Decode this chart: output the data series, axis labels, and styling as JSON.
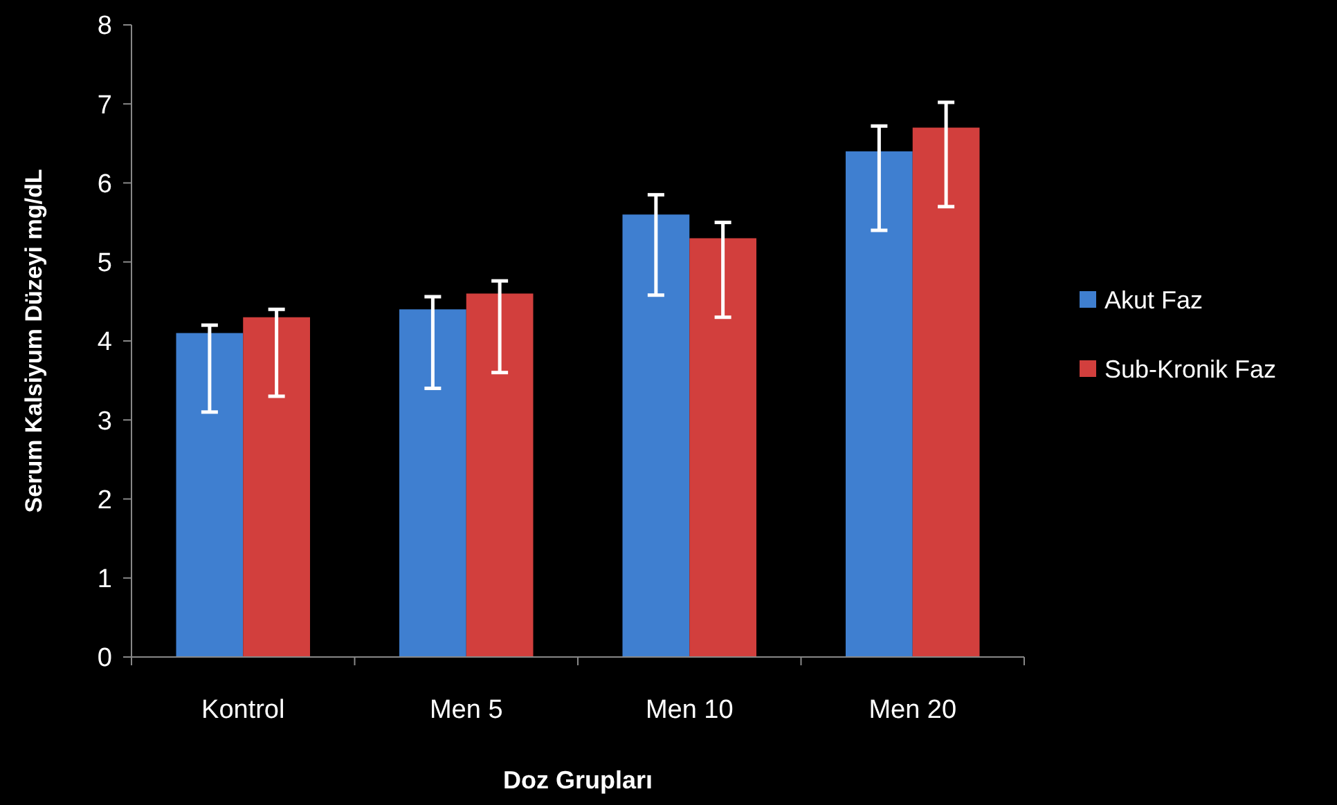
{
  "chart_data": {
    "type": "bar",
    "xlabel": "Doz Grupları",
    "ylabel": "Serum Kalsiyum Düzeyi mg/dL",
    "categories": [
      "Kontrol",
      "Men 5",
      "Men 10",
      "Men 20"
    ],
    "series": [
      {
        "name": "Akut Faz",
        "color": "#3f7fd0",
        "values": [
          4.1,
          4.4,
          5.6,
          6.4
        ],
        "errors": [
          [
            3.1,
            4.2
          ],
          [
            3.4,
            4.56
          ],
          [
            4.58,
            5.85
          ],
          [
            5.4,
            6.72
          ]
        ]
      },
      {
        "name": "Sub-Kronik Faz",
        "color": "#d23f3d",
        "values": [
          4.3,
          4.6,
          5.3,
          6.7
        ],
        "errors": [
          [
            3.3,
            4.4
          ],
          [
            3.6,
            4.76
          ],
          [
            4.3,
            5.5
          ],
          [
            5.7,
            7.02
          ]
        ]
      }
    ],
    "ylim": [
      0,
      8
    ],
    "yticks": [
      0,
      1,
      2,
      3,
      4,
      5,
      6,
      7,
      8
    ],
    "grid": false,
    "legend": "right"
  }
}
